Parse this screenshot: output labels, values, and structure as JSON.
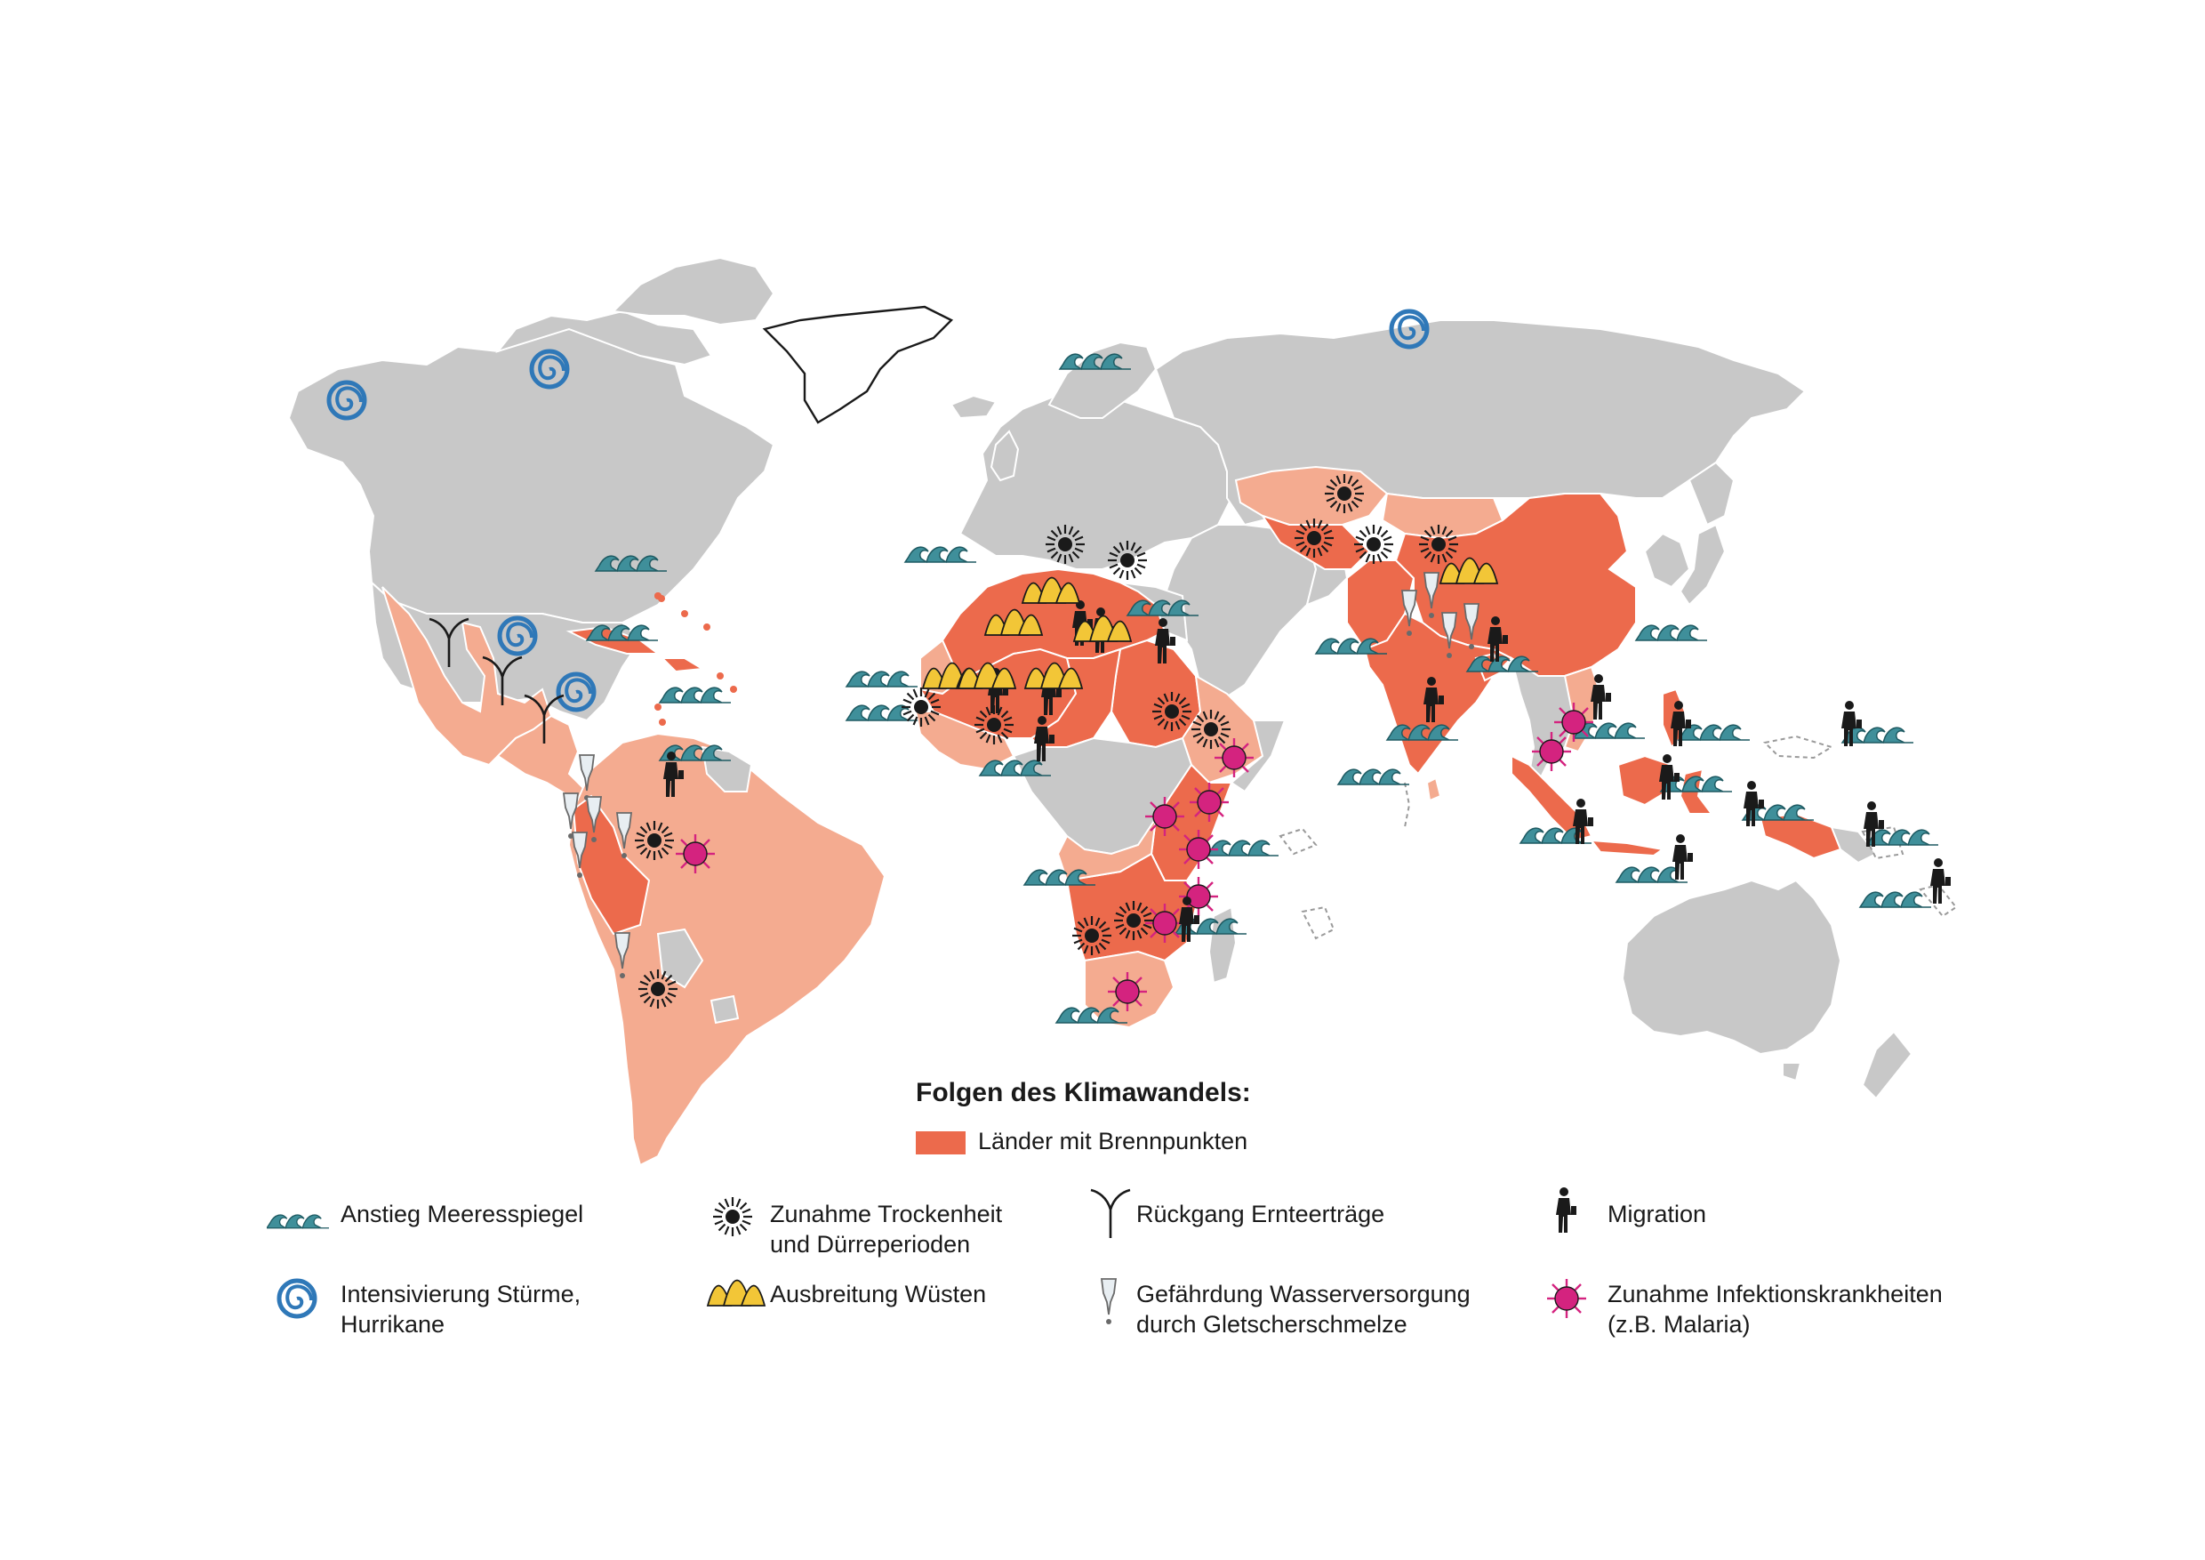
{
  "legend": {
    "title": "Folgen des Klimawandels:",
    "hotspot_label": "Länder mit Brennpunkten",
    "items": [
      {
        "icon": "wave-icon",
        "line1": "Anstieg Meeresspiegel",
        "line2": ""
      },
      {
        "icon": "sun-icon",
        "line1": "Zunahme Trockenheit",
        "line2": "und Dürreperioden"
      },
      {
        "icon": "crop-icon",
        "line1": "Rückgang Ernteerträge",
        "line2": ""
      },
      {
        "icon": "migrant-icon",
        "line1": "Migration",
        "line2": ""
      },
      {
        "icon": "swirl-icon",
        "line1": "Intensivierung Stürme,",
        "line2": "Hurrikane"
      },
      {
        "icon": "dune-icon",
        "line1": "Ausbreitung Wüsten",
        "line2": ""
      },
      {
        "icon": "glacier-icon",
        "line1": "Gefährdung Wasserversorgung",
        "line2": "durch Gletscherschmelze"
      },
      {
        "icon": "virus-icon",
        "line1": "Zunahme Infektionskrankheiten",
        "line2": "(z.B. Malaria)"
      }
    ]
  },
  "colors": {
    "land": "#c8c8c8",
    "risk": "#f4ab90",
    "hotspot": "#ec6a4c",
    "wave": "#3f8f9a",
    "swirl": "#2f78b8",
    "dune": "#f2c637",
    "virus": "#d4237f"
  }
}
